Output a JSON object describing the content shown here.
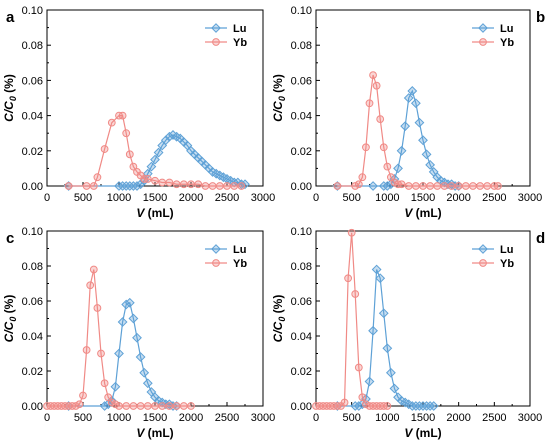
{
  "colors": {
    "lu": "#5ea1d6",
    "yb": "#f08a86",
    "axis": "#000000",
    "background": "#ffffff"
  },
  "series_markers": {
    "lu": "diamond",
    "yb": "circle"
  },
  "chart_data": [
    {
      "type": "line",
      "panel_label": "a",
      "xlabel_var": "V",
      "xlabel_unit": " (mL)",
      "ylabel": "C/C0 (%)",
      "ylabel_main": "C/C",
      "ylabel_sub": "0",
      "ylabel_unit": " (%)",
      "xlim": [
        0,
        3000
      ],
      "ylim": [
        0,
        0.1
      ],
      "xticks": [
        "0",
        "500",
        "1000",
        "1500",
        "2000",
        "2500",
        "3000"
      ],
      "yticks": [
        "0.00",
        "0.02",
        "0.04",
        "0.06",
        "0.08",
        "0.10"
      ],
      "grid": false,
      "legend_position": "top-right",
      "legend": [
        "Lu",
        "Yb"
      ],
      "series": [
        {
          "name": "Lu",
          "x": [
            300,
            1000,
            1050,
            1100,
            1150,
            1200,
            1250,
            1300,
            1350,
            1400,
            1450,
            1500,
            1550,
            1600,
            1650,
            1700,
            1750,
            1800,
            1850,
            1900,
            1950,
            2000,
            2050,
            2100,
            2150,
            2200,
            2250,
            2300,
            2350,
            2400,
            2450,
            2500,
            2550,
            2600,
            2650,
            2700,
            2750
          ],
          "y": [
            0.0,
            0.0,
            0.0,
            0.0,
            0.0,
            0.0,
            0.0,
            0.001,
            0.003,
            0.007,
            0.011,
            0.015,
            0.019,
            0.023,
            0.026,
            0.028,
            0.029,
            0.028,
            0.027,
            0.025,
            0.023,
            0.02,
            0.018,
            0.016,
            0.014,
            0.012,
            0.01,
            0.008,
            0.007,
            0.006,
            0.005,
            0.004,
            0.003,
            0.002,
            0.002,
            0.001,
            0.001
          ]
        },
        {
          "name": "Yb",
          "x": [
            300,
            550,
            650,
            700,
            800,
            900,
            1000,
            1050,
            1100,
            1150,
            1200,
            1250,
            1300,
            1350,
            1400,
            1500,
            1600,
            1700,
            1800,
            1900,
            2000,
            2100,
            2200,
            2300,
            2400,
            2500,
            2600,
            2700
          ],
          "y": [
            0.0,
            0.0,
            0.0,
            0.005,
            0.021,
            0.036,
            0.04,
            0.04,
            0.03,
            0.018,
            0.011,
            0.008,
            0.006,
            0.004,
            0.004,
            0.003,
            0.002,
            0.002,
            0.001,
            0.001,
            0.001,
            0.001,
            0.0,
            0.0,
            0.0,
            0.0,
            0.0,
            0.0
          ]
        }
      ]
    },
    {
      "type": "line",
      "panel_label": "b",
      "xlabel_var": "V",
      "xlabel_unit": " (mL)",
      "ylabel": "C/C0 (%)",
      "ylabel_main": "C/C",
      "ylabel_sub": "0",
      "ylabel_unit": " (%)",
      "xlim": [
        0,
        3000
      ],
      "ylim": [
        0,
        0.1
      ],
      "xticks": [
        "0",
        "500",
        "1000",
        "1500",
        "2000",
        "2500",
        "3000"
      ],
      "yticks": [
        "0.00",
        "0.02",
        "0.04",
        "0.06",
        "0.08",
        "0.10"
      ],
      "grid": false,
      "legend_position": "top-right",
      "legend": [
        "Lu",
        "Yb"
      ],
      "series": [
        {
          "name": "Lu",
          "x": [
            300,
            800,
            950,
            1000,
            1050,
            1100,
            1150,
            1200,
            1250,
            1300,
            1350,
            1400,
            1450,
            1500,
            1550,
            1600,
            1650,
            1700,
            1750,
            1800,
            1850,
            1900,
            1950,
            2000
          ],
          "y": [
            0.0,
            0.0,
            0.0,
            0.0,
            0.001,
            0.004,
            0.01,
            0.02,
            0.034,
            0.05,
            0.054,
            0.047,
            0.036,
            0.026,
            0.018,
            0.012,
            0.008,
            0.005,
            0.003,
            0.002,
            0.001,
            0.001,
            0.0,
            0.0
          ]
        },
        {
          "name": "Yb",
          "x": [
            300,
            550,
            600,
            650,
            700,
            750,
            800,
            850,
            900,
            950,
            1000,
            1050,
            1100,
            1150,
            1200,
            1300,
            1400,
            1500,
            1600,
            1700,
            1800,
            1900,
            2000,
            2100,
            2200,
            2300,
            2400,
            2500,
            2550
          ],
          "y": [
            0.0,
            0.0,
            0.001,
            0.005,
            0.022,
            0.047,
            0.063,
            0.057,
            0.038,
            0.022,
            0.011,
            0.005,
            0.002,
            0.001,
            0.001,
            0.0,
            0.0,
            0.0,
            0.0,
            0.0,
            0.0,
            0.0,
            0.0,
            0.0,
            0.0,
            0.0,
            0.0,
            0.0,
            0.0
          ]
        }
      ]
    },
    {
      "type": "line",
      "panel_label": "c",
      "xlabel_var": "V",
      "xlabel_unit": " (mL)",
      "ylabel": "C/C0 (%)",
      "ylabel_main": "C/C",
      "ylabel_sub": "0",
      "ylabel_unit": " (%)",
      "xlim": [
        0,
        3000
      ],
      "ylim": [
        0,
        0.1
      ],
      "xticks": [
        "0",
        "500",
        "1000",
        "1500",
        "2000",
        "2500",
        "3000"
      ],
      "yticks": [
        "0.00",
        "0.02",
        "0.04",
        "0.06",
        "0.08",
        "0.10"
      ],
      "grid": false,
      "legend_position": "top-right",
      "legend": [
        "Lu",
        "Yb"
      ],
      "series": [
        {
          "name": "Lu",
          "x": [
            300,
            800,
            850,
            900,
            950,
            1000,
            1050,
            1100,
            1150,
            1200,
            1250,
            1300,
            1350,
            1400,
            1450,
            1500,
            1550,
            1600,
            1650,
            1700,
            1750,
            1800
          ],
          "y": [
            0.0,
            0.0,
            0.001,
            0.003,
            0.011,
            0.03,
            0.048,
            0.058,
            0.059,
            0.05,
            0.039,
            0.028,
            0.019,
            0.013,
            0.008,
            0.005,
            0.003,
            0.002,
            0.001,
            0.001,
            0.0,
            0.0
          ]
        },
        {
          "name": "Yb",
          "x": [
            0,
            50,
            100,
            150,
            200,
            250,
            300,
            350,
            400,
            450,
            500,
            550,
            600,
            650,
            700,
            750,
            800,
            850,
            900,
            950,
            1000,
            1100,
            1200,
            1300,
            1400,
            1500,
            1600,
            1700,
            1800,
            1900,
            2000
          ],
          "y": [
            0.0,
            0.0,
            0.0,
            0.0,
            0.0,
            0.0,
            0.0,
            0.0,
            0.0,
            0.001,
            0.006,
            0.032,
            0.069,
            0.078,
            0.056,
            0.03,
            0.013,
            0.005,
            0.002,
            0.001,
            0.0,
            0.0,
            0.0,
            0.0,
            0.0,
            0.0,
            0.0,
            0.0,
            0.0,
            0.0,
            0.0
          ]
        }
      ]
    },
    {
      "type": "line",
      "panel_label": "d",
      "xlabel_var": "V",
      "xlabel_unit": " (mL)",
      "ylabel": "C/C0 (%)",
      "ylabel_main": "C/C",
      "ylabel_sub": "0",
      "ylabel_unit": " (%)",
      "xlim": [
        0,
        3000
      ],
      "ylim": [
        0,
        0.1
      ],
      "xticks": [
        "0",
        "500",
        "1000",
        "1500",
        "2000",
        "2500",
        "3000"
      ],
      "yticks": [
        "0.00",
        "0.02",
        "0.04",
        "0.06",
        "0.08",
        "0.10"
      ],
      "grid": false,
      "legend_position": "top-right",
      "legend": [
        "Lu",
        "Yb"
      ],
      "series": [
        {
          "name": "Lu",
          "x": [
            300,
            550,
            600,
            650,
            700,
            750,
            800,
            850,
            900,
            950,
            1000,
            1050,
            1100,
            1150,
            1200,
            1250,
            1300,
            1350,
            1400,
            1450,
            1500,
            1550,
            1600,
            1650
          ],
          "y": [
            0.0,
            0.0,
            0.0,
            0.001,
            0.004,
            0.014,
            0.043,
            0.078,
            0.073,
            0.053,
            0.033,
            0.019,
            0.01,
            0.005,
            0.003,
            0.002,
            0.001,
            0.0,
            0.0,
            0.0,
            0.0,
            0.0,
            0.0,
            0.0
          ]
        },
        {
          "name": "Yb",
          "x": [
            0,
            50,
            100,
            150,
            200,
            250,
            300,
            350,
            400,
            450,
            500,
            550,
            600,
            650,
            700,
            750,
            800,
            850,
            900,
            950,
            1000
          ],
          "y": [
            0.0,
            0.0,
            0.0,
            0.0,
            0.0,
            0.0,
            0.0,
            0.0,
            0.002,
            0.073,
            0.099,
            0.064,
            0.022,
            0.005,
            0.001,
            0.0,
            0.0,
            0.0,
            0.0,
            0.0,
            0.0
          ]
        }
      ]
    }
  ]
}
